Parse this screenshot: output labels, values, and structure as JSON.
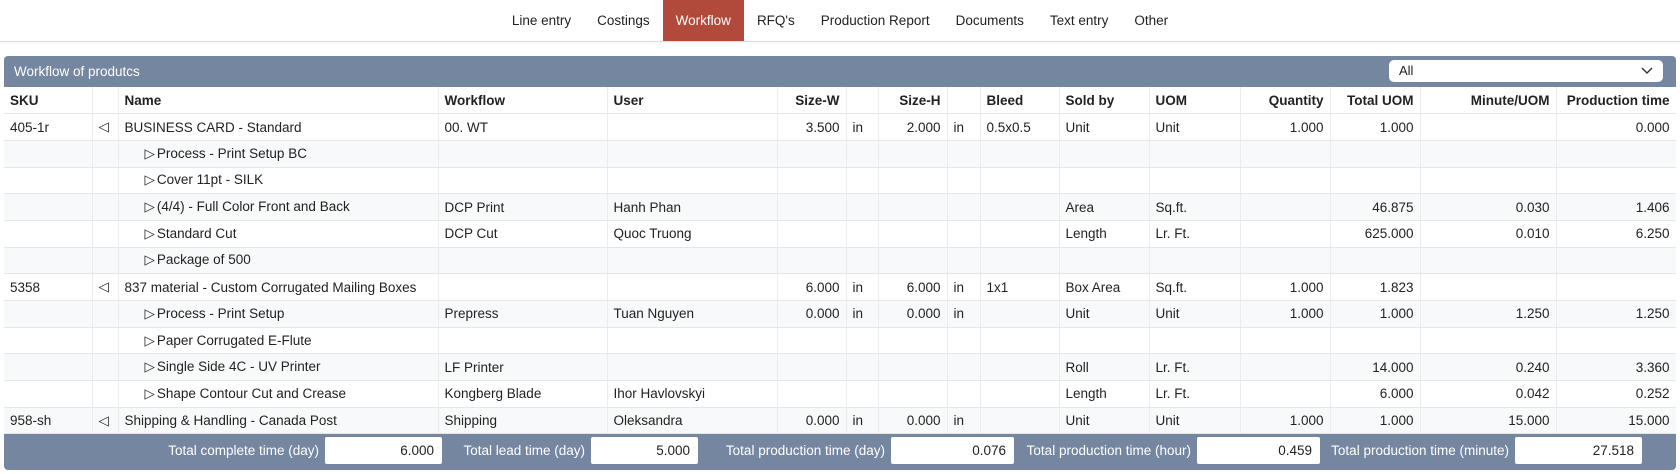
{
  "tabs": [
    {
      "label": "Line entry"
    },
    {
      "label": "Costings"
    },
    {
      "label": "Workflow",
      "active": true
    },
    {
      "label": "RFQ's"
    },
    {
      "label": "Production Report"
    },
    {
      "label": "Documents"
    },
    {
      "label": "Text entry"
    },
    {
      "label": "Other"
    }
  ],
  "panel": {
    "title": "Workflow of produtcs",
    "filter": "All"
  },
  "table": {
    "columns": [
      "SKU",
      "Name",
      "Workflow",
      "User",
      "Size-W",
      "Size-H",
      "Bleed",
      "Sold by",
      "UOM",
      "Quantity",
      "Total UOM",
      "Minute/UOM",
      "Production time"
    ],
    "products": [
      {
        "sku": "405-1r",
        "name": "BUSINESS CARD - Standard",
        "workflow": "00. WT",
        "size_w": "3.500",
        "size_w_unit": "in",
        "size_h": "2.000",
        "size_h_unit": "in",
        "bleed": "0.5x0.5",
        "sold_by": "Unit",
        "uom": "Unit",
        "quantity": "1.000",
        "total_uom": "1.000",
        "production_time": "0.000",
        "steps": [
          {
            "name": "Process - Print Setup BC"
          },
          {
            "name": "Cover 11pt - SILK"
          },
          {
            "name": "(4/4) - Full Color Front and Back",
            "workflow": "DCP Print",
            "user": "Hanh Phan",
            "sold_by": "Area",
            "uom": "Sq.ft.",
            "total_uom": "46.875",
            "minute_uom": "0.030",
            "production_time": "1.406"
          },
          {
            "name": "Standard Cut",
            "workflow": "DCP Cut",
            "user": "Quoc Truong",
            "sold_by": "Length",
            "uom": "Lr. Ft.",
            "total_uom": "625.000",
            "minute_uom": "0.010",
            "production_time": "6.250"
          },
          {
            "name": "Package of 500"
          }
        ]
      },
      {
        "sku": "5358",
        "name": "837 material - Custom Corrugated Mailing Boxes",
        "size_w": "6.000",
        "size_w_unit": "in",
        "size_h": "6.000",
        "size_h_unit": "in",
        "bleed": "1x1",
        "sold_by": "Box Area",
        "uom": "Sq.ft.",
        "quantity": "1.000",
        "total_uom": "1.823",
        "steps": [
          {
            "name": "Process - Print Setup",
            "workflow": "Prepress",
            "user": "Tuan Nguyen",
            "size_w": "0.000",
            "size_w_unit": "in",
            "size_h": "0.000",
            "size_h_unit": "in",
            "sold_by": "Unit",
            "uom": "Unit",
            "quantity": "1.000",
            "total_uom": "1.000",
            "minute_uom": "1.250",
            "production_time": "1.250"
          },
          {
            "name": "Paper Corrugated E-Flute"
          },
          {
            "name": "Single Side 4C - UV Printer",
            "workflow": "LF Printer",
            "sold_by": "Roll",
            "uom": "Lr. Ft.",
            "total_uom": "14.000",
            "minute_uom": "0.240",
            "production_time": "3.360"
          },
          {
            "name": "Shape Contour Cut and Crease",
            "workflow": "Kongberg Blade",
            "user": "Ihor Havlovskyi",
            "sold_by": "Length",
            "uom": "Lr. Ft.",
            "total_uom": "6.000",
            "minute_uom": "0.042",
            "production_time": "0.252"
          }
        ]
      },
      {
        "sku": "958-sh",
        "name": "Shipping & Handling - Canada Post",
        "workflow": "Shipping",
        "user": "Oleksandra",
        "size_w": "0.000",
        "size_w_unit": "in",
        "size_h": "0.000",
        "size_h_unit": "in",
        "sold_by": "Unit",
        "uom": "Unit",
        "quantity": "1.000",
        "total_uom": "1.000",
        "minute_uom": "15.000",
        "production_time": "15.000"
      }
    ]
  },
  "footer": [
    {
      "label": "Total complete time (day)",
      "value": "6.000"
    },
    {
      "label": "Total lead time (day)",
      "value": "5.000"
    },
    {
      "label": "Total production time (day)",
      "value": "0.076"
    },
    {
      "label": "Total production time (hour)",
      "value": "0.459"
    },
    {
      "label": "Total production time (minute)",
      "value": "27.518"
    }
  ]
}
